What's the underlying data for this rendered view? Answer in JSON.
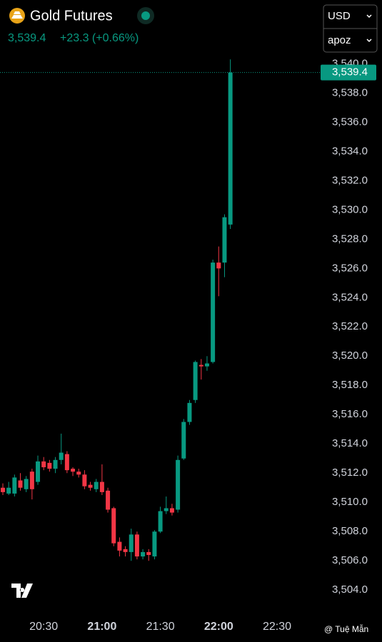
{
  "chart_data": {
    "type": "candlestick",
    "title": "Gold Futures",
    "last_price": {
      "value": 3539.4,
      "label": "3,539.4"
    },
    "change": "+23.3 (+0.66%)",
    "currency": "USD",
    "unit": "apoz",
    "credit": "@ Tuệ Mẫn",
    "up_color": "#089981",
    "down_color": "#f23645",
    "categories": [
      null,
      null,
      null,
      null,
      null,
      null,
      null,
      "20:30",
      null,
      null,
      null,
      null,
      null,
      null,
      null,
      null,
      null,
      "21:00",
      null,
      null,
      null,
      null,
      null,
      null,
      null,
      null,
      null,
      "21:30",
      null,
      null,
      null,
      null,
      null,
      null,
      null,
      null,
      null,
      "22:00",
      null,
      null,
      null,
      null,
      null,
      null,
      null,
      null,
      null,
      "22:30",
      null,
      null,
      null,
      null
    ],
    "open": [
      3511.0,
      3510.6,
      3510.6,
      3511.5,
      3510.9,
      3512.1,
      3511.4,
      3512.8,
      3512.7,
      3512.3,
      3512.9,
      3513.3,
      3512.3,
      3512.1,
      3511.9,
      3511.2,
      3510.9,
      3511.4,
      3510.8,
      3509.6,
      3507.3,
      3506.8,
      3506.6,
      3507.8,
      3506.3,
      3506.6,
      3506.3,
      3508.0,
      3509.4,
      3509.6,
      3509.5,
      3513.0,
      3515.5,
      3517.0,
      3519.4,
      3519.3,
      3519.6,
      3526.4,
      3526.4,
      3529.0,
      null,
      null,
      null,
      null,
      null,
      null,
      null,
      null,
      null,
      null,
      null,
      null
    ],
    "high": [
      3511.3,
      3511.4,
      3511.9,
      3512.0,
      3511.8,
      3512.3,
      3513.2,
      3513.1,
      3512.9,
      3513.1,
      3514.7,
      3513.5,
      3512.4,
      3512.3,
      3512.2,
      3511.4,
      3511.6,
      3512.6,
      3511.0,
      3509.7,
      3507.6,
      3507.0,
      3508.2,
      3508.0,
      3506.8,
      3506.8,
      3508.1,
      3509.7,
      3510.4,
      3509.9,
      3513.2,
      3515.7,
      3517.0,
      3519.7,
      3519.8,
      3520.0,
      3526.6,
      3527.5,
      3529.7,
      3540.3,
      null,
      null,
      null,
      null,
      null,
      null,
      null,
      null,
      null,
      null,
      null,
      null
    ],
    "low": [
      3510.5,
      3510.5,
      3510.4,
      3510.8,
      3510.7,
      3510.2,
      3511.2,
      3512.2,
      3512.1,
      3512.0,
      3512.6,
      3512.0,
      3511.8,
      3511.7,
      3510.9,
      3510.8,
      3510.7,
      3510.5,
      3509.3,
      3507.0,
      3506.3,
      3506.3,
      3506.0,
      3506.1,
      3506.1,
      3506.0,
      3506.1,
      3507.9,
      3509.2,
      3509.1,
      3509.3,
      3512.9,
      3515.3,
      3516.8,
      3518.4,
      3519.0,
      3519.5,
      3524.1,
      3525.4,
      3528.7,
      null,
      null,
      null,
      null,
      null,
      null,
      null,
      null,
      null,
      null,
      null,
      null
    ],
    "close": [
      3510.7,
      3511.0,
      3511.7,
      3511.0,
      3511.6,
      3510.9,
      3512.8,
      3512.4,
      3512.3,
      3512.9,
      3513.4,
      3512.2,
      3512.1,
      3511.9,
      3511.1,
      3511.0,
      3511.4,
      3510.7,
      3509.5,
      3507.2,
      3506.7,
      3506.6,
      3507.8,
      3506.3,
      3506.6,
      3506.4,
      3508.0,
      3509.4,
      3509.6,
      3509.3,
      3512.9,
      3515.5,
      3516.8,
      3519.6,
      3519.3,
      3519.5,
      3526.4,
      3526.0,
      3529.5,
      3539.4,
      null,
      null,
      null,
      null,
      null,
      null,
      null,
      null,
      null,
      null,
      null,
      null
    ],
    "ylim": [
      3502.4,
      3540.7
    ],
    "yticks": [
      {
        "value": 3504,
        "label": "3,504.0"
      },
      {
        "value": 3506,
        "label": "3,506.0"
      },
      {
        "value": 3508,
        "label": "3,508.0"
      },
      {
        "value": 3510,
        "label": "3,510.0"
      },
      {
        "value": 3512,
        "label": "3,512.0"
      },
      {
        "value": 3514,
        "label": "3,514.0"
      },
      {
        "value": 3516,
        "label": "3,516.0"
      },
      {
        "value": 3518,
        "label": "3,518.0"
      },
      {
        "value": 3520,
        "label": "3,520.0"
      },
      {
        "value": 3522,
        "label": "3,522.0"
      },
      {
        "value": 3524,
        "label": "3,524.0"
      },
      {
        "value": 3526,
        "label": "3,526.0"
      },
      {
        "value": 3528,
        "label": "3,528.0"
      },
      {
        "value": 3530,
        "label": "3,530.0"
      },
      {
        "value": 3532,
        "label": "3,532.0"
      },
      {
        "value": 3534,
        "label": "3,534.0"
      },
      {
        "value": 3536,
        "label": "3,536.0"
      },
      {
        "value": 3538,
        "label": "3,538.0"
      },
      {
        "value": 3540,
        "label": "3,540.0"
      }
    ]
  }
}
